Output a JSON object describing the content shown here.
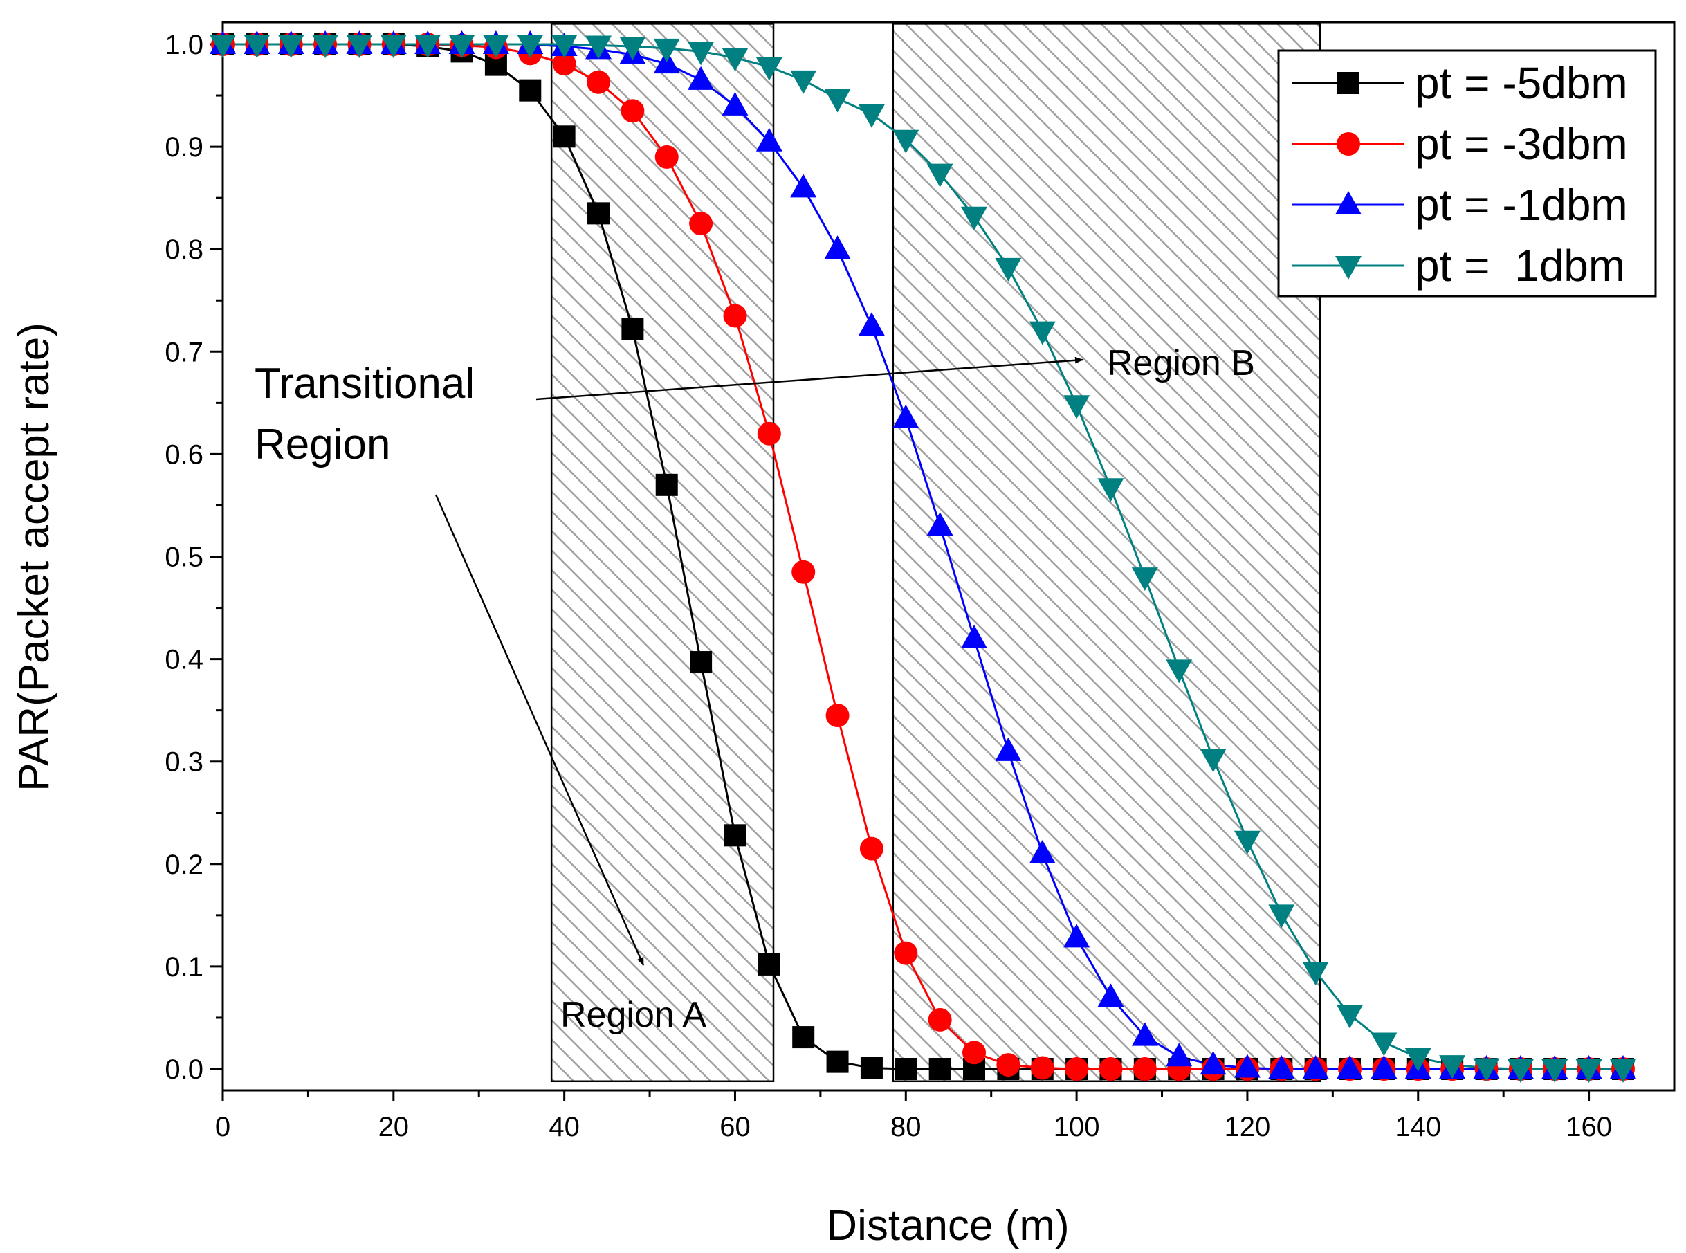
{
  "chart_data": {
    "type": "line",
    "xlabel": "Distance (m)",
    "ylabel": "PAR(Packet accept rate)",
    "xlim": [
      0,
      170
    ],
    "ylim": [
      -0.02,
      1.0
    ],
    "xticks": [
      0,
      20,
      40,
      60,
      80,
      100,
      120,
      140,
      160
    ],
    "xtick_labels": [
      "0",
      "20",
      "40",
      "60",
      "80",
      "100",
      "120",
      "140",
      "160"
    ],
    "yticks": [
      0.0,
      0.1,
      0.2,
      0.3,
      0.4,
      0.5,
      0.6,
      0.7,
      0.8,
      0.9,
      1.0
    ],
    "ytick_labels": [
      "0.0",
      "0.1",
      "0.2",
      "0.3",
      "0.4",
      "0.5",
      "0.6",
      "0.7",
      "0.8",
      "0.9",
      "1.0"
    ],
    "legend_position": "top-right",
    "x": [
      0,
      4,
      8,
      12,
      16,
      20,
      24,
      28,
      32,
      36,
      40,
      44,
      48,
      52,
      56,
      60,
      64,
      68,
      72,
      76,
      80,
      84,
      88,
      92,
      96,
      100,
      104,
      108,
      112,
      116,
      120,
      124,
      128,
      132,
      136,
      140,
      144,
      148,
      152,
      156,
      160,
      164
    ],
    "series": [
      {
        "name": "pt = -5dbm",
        "color": "#000000",
        "marker": "square",
        "values": [
          1.0,
          1.0,
          1.0,
          1.0,
          1.0,
          1.0,
          0.998,
          0.993,
          0.98,
          0.955,
          0.91,
          0.835,
          0.722,
          0.57,
          0.397,
          0.228,
          0.102,
          0.031,
          0.007,
          0.001,
          0.0,
          0.0,
          0.0,
          0.0,
          0.0,
          0.0,
          0.0,
          0.0,
          0.0,
          0.0,
          0.0,
          0.0,
          0.0,
          0.0,
          0.0,
          0.0,
          0.0,
          0.0,
          0.0,
          0.0,
          0.0,
          0.0
        ]
      },
      {
        "name": "pt = -3dbm",
        "color": "#ff0000",
        "marker": "circle",
        "values": [
          1.0,
          1.0,
          1.0,
          1.0,
          1.0,
          1.0,
          1.0,
          0.999,
          0.997,
          0.991,
          0.981,
          0.963,
          0.935,
          0.89,
          0.825,
          0.735,
          0.62,
          0.485,
          0.345,
          0.215,
          0.113,
          0.048,
          0.016,
          0.004,
          0.001,
          0.0,
          0.0,
          0.0,
          0.0,
          0.0,
          0.0,
          0.0,
          0.0,
          0.0,
          0.0,
          0.0,
          0.0,
          0.0,
          0.0,
          0.0,
          0.0,
          0.0
        ]
      },
      {
        "name": "pt = -1dbm",
        "color": "#0000ff",
        "marker": "triangle-up",
        "values": [
          1.0,
          1.0,
          1.0,
          1.0,
          1.0,
          1.0,
          1.0,
          1.0,
          1.0,
          1.0,
          0.998,
          0.995,
          0.99,
          0.981,
          0.965,
          0.94,
          0.905,
          0.86,
          0.8,
          0.725,
          0.635,
          0.53,
          0.42,
          0.31,
          0.21,
          0.128,
          0.07,
          0.032,
          0.012,
          0.004,
          0.001,
          0.0,
          0.0,
          0.0,
          0.0,
          0.0,
          0.0,
          0.0,
          0.0,
          0.0,
          0.0,
          0.0
        ]
      },
      {
        "name": "pt =  1dbm",
        "color": "#008080",
        "marker": "triangle-down",
        "values": [
          1.0,
          1.0,
          1.0,
          1.0,
          1.0,
          1.0,
          1.0,
          1.0,
          1.0,
          1.0,
          1.0,
          0.999,
          0.998,
          0.996,
          0.993,
          0.987,
          0.978,
          0.965,
          0.947,
          0.932,
          0.907,
          0.874,
          0.832,
          0.782,
          0.72,
          0.648,
          0.567,
          0.48,
          0.39,
          0.303,
          0.223,
          0.151,
          0.095,
          0.053,
          0.026,
          0.011,
          0.004,
          0.001,
          0.0,
          0.0,
          0.0,
          0.0
        ]
      }
    ],
    "regions": [
      {
        "label": "Region A",
        "x_start": 38.5,
        "x_end": 64.5,
        "y_start": -0.012,
        "y_end": 1.02
      },
      {
        "label": "Region B",
        "x_start": 78.5,
        "x_end": 128.5,
        "y_start": -0.012,
        "y_end": 1.02
      }
    ],
    "annotations": {
      "line1": "Transitional",
      "line2": "Region"
    }
  }
}
